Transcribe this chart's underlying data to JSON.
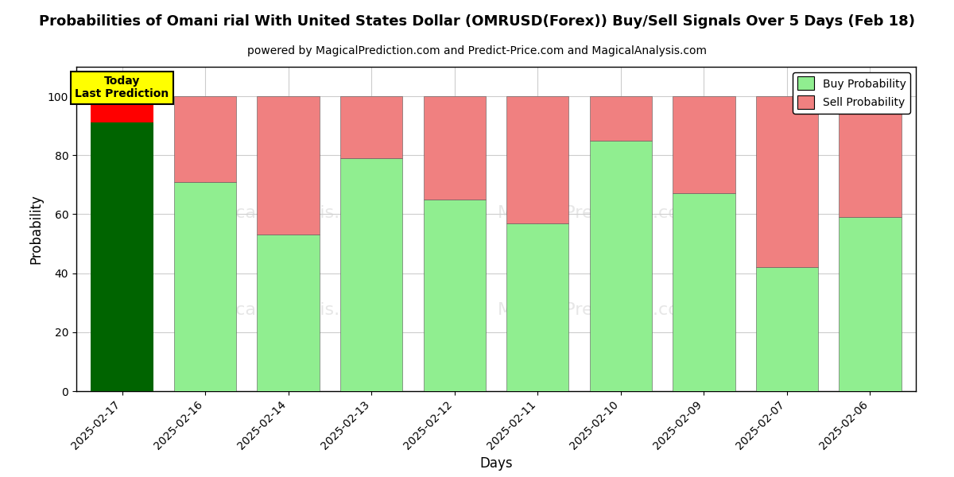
{
  "title": "Probabilities of Omani rial With United States Dollar (OMRUSD(Forex)) Buy/Sell Signals Over 5 Days (Feb 18)",
  "subtitle": "powered by MagicalPrediction.com and Predict-Price.com and MagicalAnalysis.com",
  "xlabel": "Days",
  "ylabel": "Probability",
  "categories": [
    "2025-02-17",
    "2025-02-16",
    "2025-02-14",
    "2025-02-13",
    "2025-02-12",
    "2025-02-11",
    "2025-02-10",
    "2025-02-09",
    "2025-02-07",
    "2025-02-06"
  ],
  "buy_values": [
    91,
    71,
    53,
    79,
    65,
    57,
    85,
    67,
    42,
    59
  ],
  "sell_values": [
    9,
    29,
    47,
    21,
    35,
    43,
    15,
    33,
    58,
    41
  ],
  "today_buy_color": "#006400",
  "today_sell_color": "#ff0000",
  "buy_color": "#90EE90",
  "sell_color": "#F08080",
  "today_label_bg": "#ffff00",
  "today_text": "Today\nLast Prediction",
  "ylim": [
    0,
    110
  ],
  "yticks": [
    0,
    20,
    40,
    60,
    80,
    100
  ],
  "dashed_line_y": 110,
  "bar_width": 0.75,
  "bg_color": "#ffffff",
  "grid_color": "#cccccc",
  "legend_buy_label": "Buy Probability",
  "legend_sell_label": "Sell Probability"
}
